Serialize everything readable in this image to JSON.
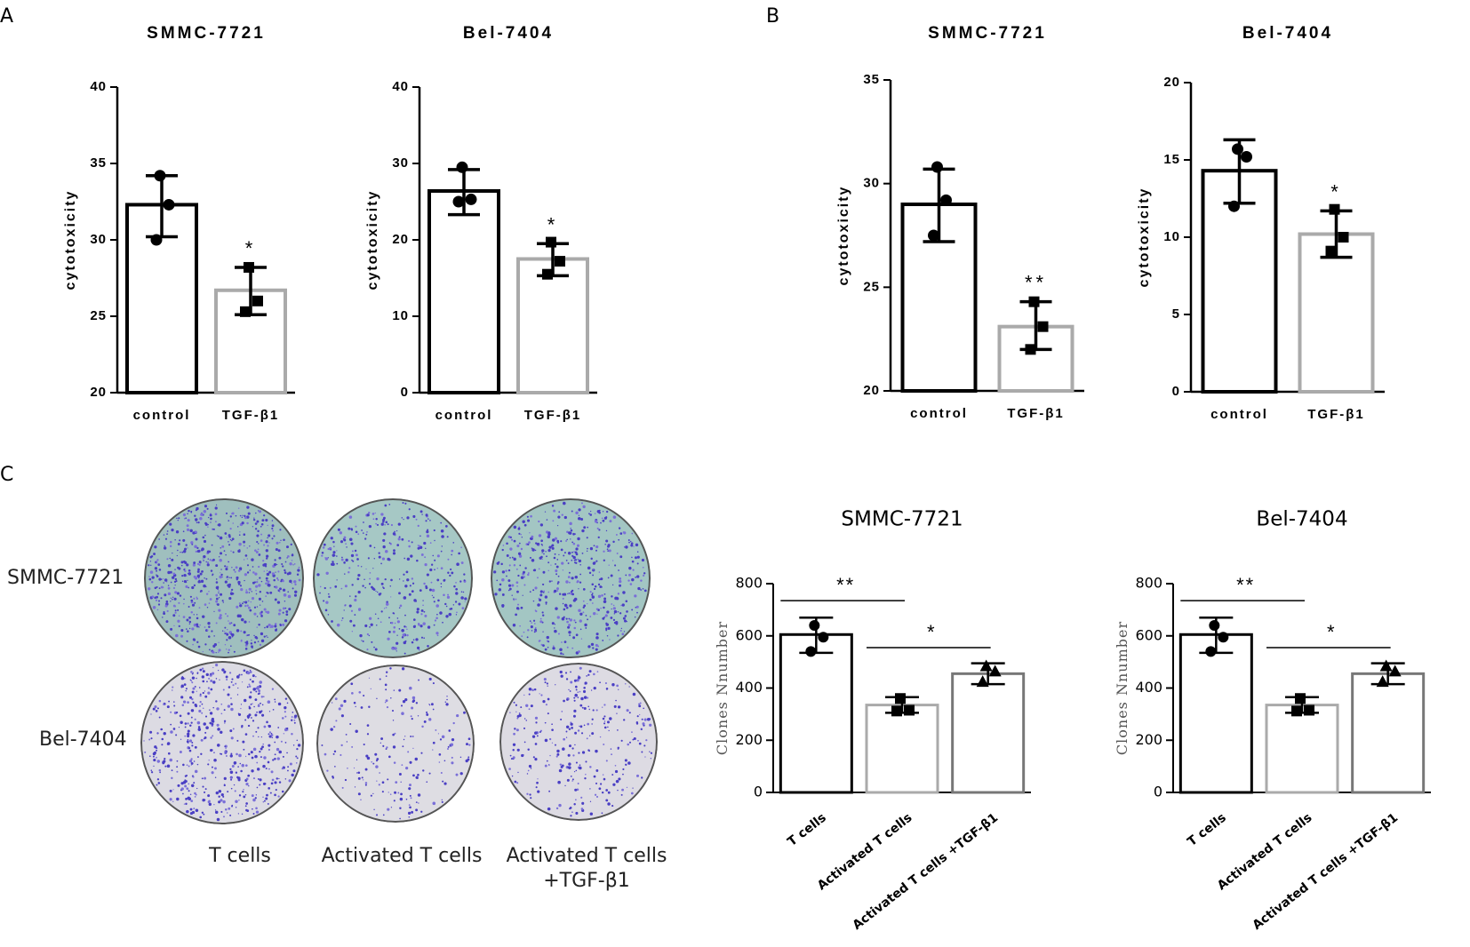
{
  "panels": {
    "a": "A",
    "b": "B",
    "c": "C"
  },
  "plates": {
    "rows": [
      "SMMC-7721",
      "Bel-7404"
    ],
    "columns": [
      {
        "line1": "T cells",
        "line2": ""
      },
      {
        "line1": "Activated T cells",
        "line2": ""
      },
      {
        "line1": "Activated T cells",
        "line2": "+TGF-β1"
      }
    ]
  },
  "chart_data": [
    {
      "type": "bar",
      "panel": "A",
      "title": "SMMC-7721",
      "ylabel": "cytotoxicity",
      "xlabel": "",
      "ylim": [
        20,
        40
      ],
      "yticks": [
        "20",
        "25",
        "30",
        "35",
        "40"
      ],
      "categories": [
        "control",
        "TGF-β1"
      ],
      "values": [
        32.3,
        26.7
      ],
      "error": [
        [
          30.2,
          34.2
        ],
        [
          25.1,
          28.2
        ]
      ],
      "points": [
        [
          34.2,
          32.3,
          30.0
        ],
        [
          28.2,
          26.0,
          25.3
        ]
      ],
      "significance": [
        "",
        "*"
      ],
      "bar_colors": [
        "#000000",
        "#aaaaaa"
      ],
      "grid": false
    },
    {
      "type": "bar",
      "panel": "A",
      "title": "Bel-7404",
      "ylabel": "cytotoxicity",
      "xlabel": "",
      "ylim": [
        0,
        40
      ],
      "yticks": [
        "0",
        "10",
        "20",
        "30",
        "40"
      ],
      "categories": [
        "control",
        "TGF-β1"
      ],
      "values": [
        26.4,
        17.5
      ],
      "error": [
        [
          23.3,
          29.2
        ],
        [
          15.3,
          19.5
        ]
      ],
      "points": [
        [
          29.5,
          25.3,
          25.0
        ],
        [
          19.7,
          17.2,
          15.5
        ]
      ],
      "significance": [
        "",
        "*"
      ],
      "bar_colors": [
        "#000000",
        "#aaaaaa"
      ],
      "grid": false
    },
    {
      "type": "bar",
      "panel": "B",
      "title": "SMMC-7721",
      "ylabel": "cytotoxicity",
      "xlabel": "",
      "ylim": [
        20,
        35
      ],
      "yticks": [
        "20",
        "25",
        "30",
        "35"
      ],
      "categories": [
        "control",
        "TGF-β1"
      ],
      "values": [
        29.0,
        23.1
      ],
      "error": [
        [
          27.2,
          30.7
        ],
        [
          22.0,
          24.3
        ]
      ],
      "points": [
        [
          30.8,
          29.2,
          27.5
        ],
        [
          24.3,
          23.1,
          22.0
        ]
      ],
      "significance": [
        "",
        "**"
      ],
      "bar_colors": [
        "#000000",
        "#aaaaaa"
      ],
      "grid": false
    },
    {
      "type": "bar",
      "panel": "B",
      "title": "Bel-7404",
      "ylabel": "cytotoxicity",
      "xlabel": "",
      "ylim": [
        0,
        20
      ],
      "yticks": [
        "0",
        "5",
        "10",
        "15",
        "20"
      ],
      "categories": [
        "control",
        "TGF-β1"
      ],
      "values": [
        14.3,
        10.2
      ],
      "error": [
        [
          12.2,
          16.3
        ],
        [
          8.7,
          11.7
        ]
      ],
      "points": [
        [
          15.7,
          15.2,
          12.0
        ],
        [
          11.8,
          10.0,
          9.1
        ]
      ],
      "significance": [
        "",
        "*"
      ],
      "bar_colors": [
        "#000000",
        "#aaaaaa"
      ],
      "grid": false
    },
    {
      "type": "bar",
      "panel": "C",
      "title": "SMMC-7721",
      "ylabel": "Clones Nnumber",
      "xlabel": "",
      "ylim": [
        0,
        800
      ],
      "yticks": [
        "0",
        "200",
        "400",
        "600",
        "800"
      ],
      "categories": [
        "T cells",
        "Activated T cells",
        "Activated T cells +TGF-β1"
      ],
      "values": [
        605,
        335,
        455
      ],
      "error": [
        [
          535,
          670
        ],
        [
          305,
          365
        ],
        [
          415,
          495
        ]
      ],
      "points": [
        [
          640,
          595,
          540
        ],
        [
          360,
          315,
          312
        ],
        [
          485,
          465,
          425
        ]
      ],
      "point_markers": [
        "circle",
        "square",
        "triangle"
      ],
      "comparisons": [
        {
          "from": 0,
          "to": 1,
          "label": "**"
        },
        {
          "from": 1,
          "to": 2,
          "label": "*"
        }
      ],
      "bar_colors": [
        "#000000",
        "#aaaaaa",
        "#777777"
      ],
      "grid": false
    },
    {
      "type": "bar",
      "panel": "C",
      "title": "Bel-7404",
      "ylabel": "Clones Nnumber",
      "xlabel": "",
      "ylim": [
        0,
        800
      ],
      "yticks": [
        "0",
        "200",
        "400",
        "600",
        "800"
      ],
      "categories": [
        "T cells",
        "Activated T cells",
        "Activated T cells +TGF-β1"
      ],
      "values": [
        605,
        335,
        455
      ],
      "error": [
        [
          535,
          670
        ],
        [
          305,
          365
        ],
        [
          415,
          495
        ]
      ],
      "points": [
        [
          640,
          595,
          540
        ],
        [
          360,
          315,
          312
        ],
        [
          485,
          465,
          425
        ]
      ],
      "point_markers": [
        "circle",
        "square",
        "triangle"
      ],
      "comparisons": [
        {
          "from": 0,
          "to": 1,
          "label": "**"
        },
        {
          "from": 1,
          "to": 2,
          "label": "*"
        }
      ],
      "bar_colors": [
        "#000000",
        "#aaaaaa",
        "#777777"
      ],
      "grid": false
    }
  ]
}
